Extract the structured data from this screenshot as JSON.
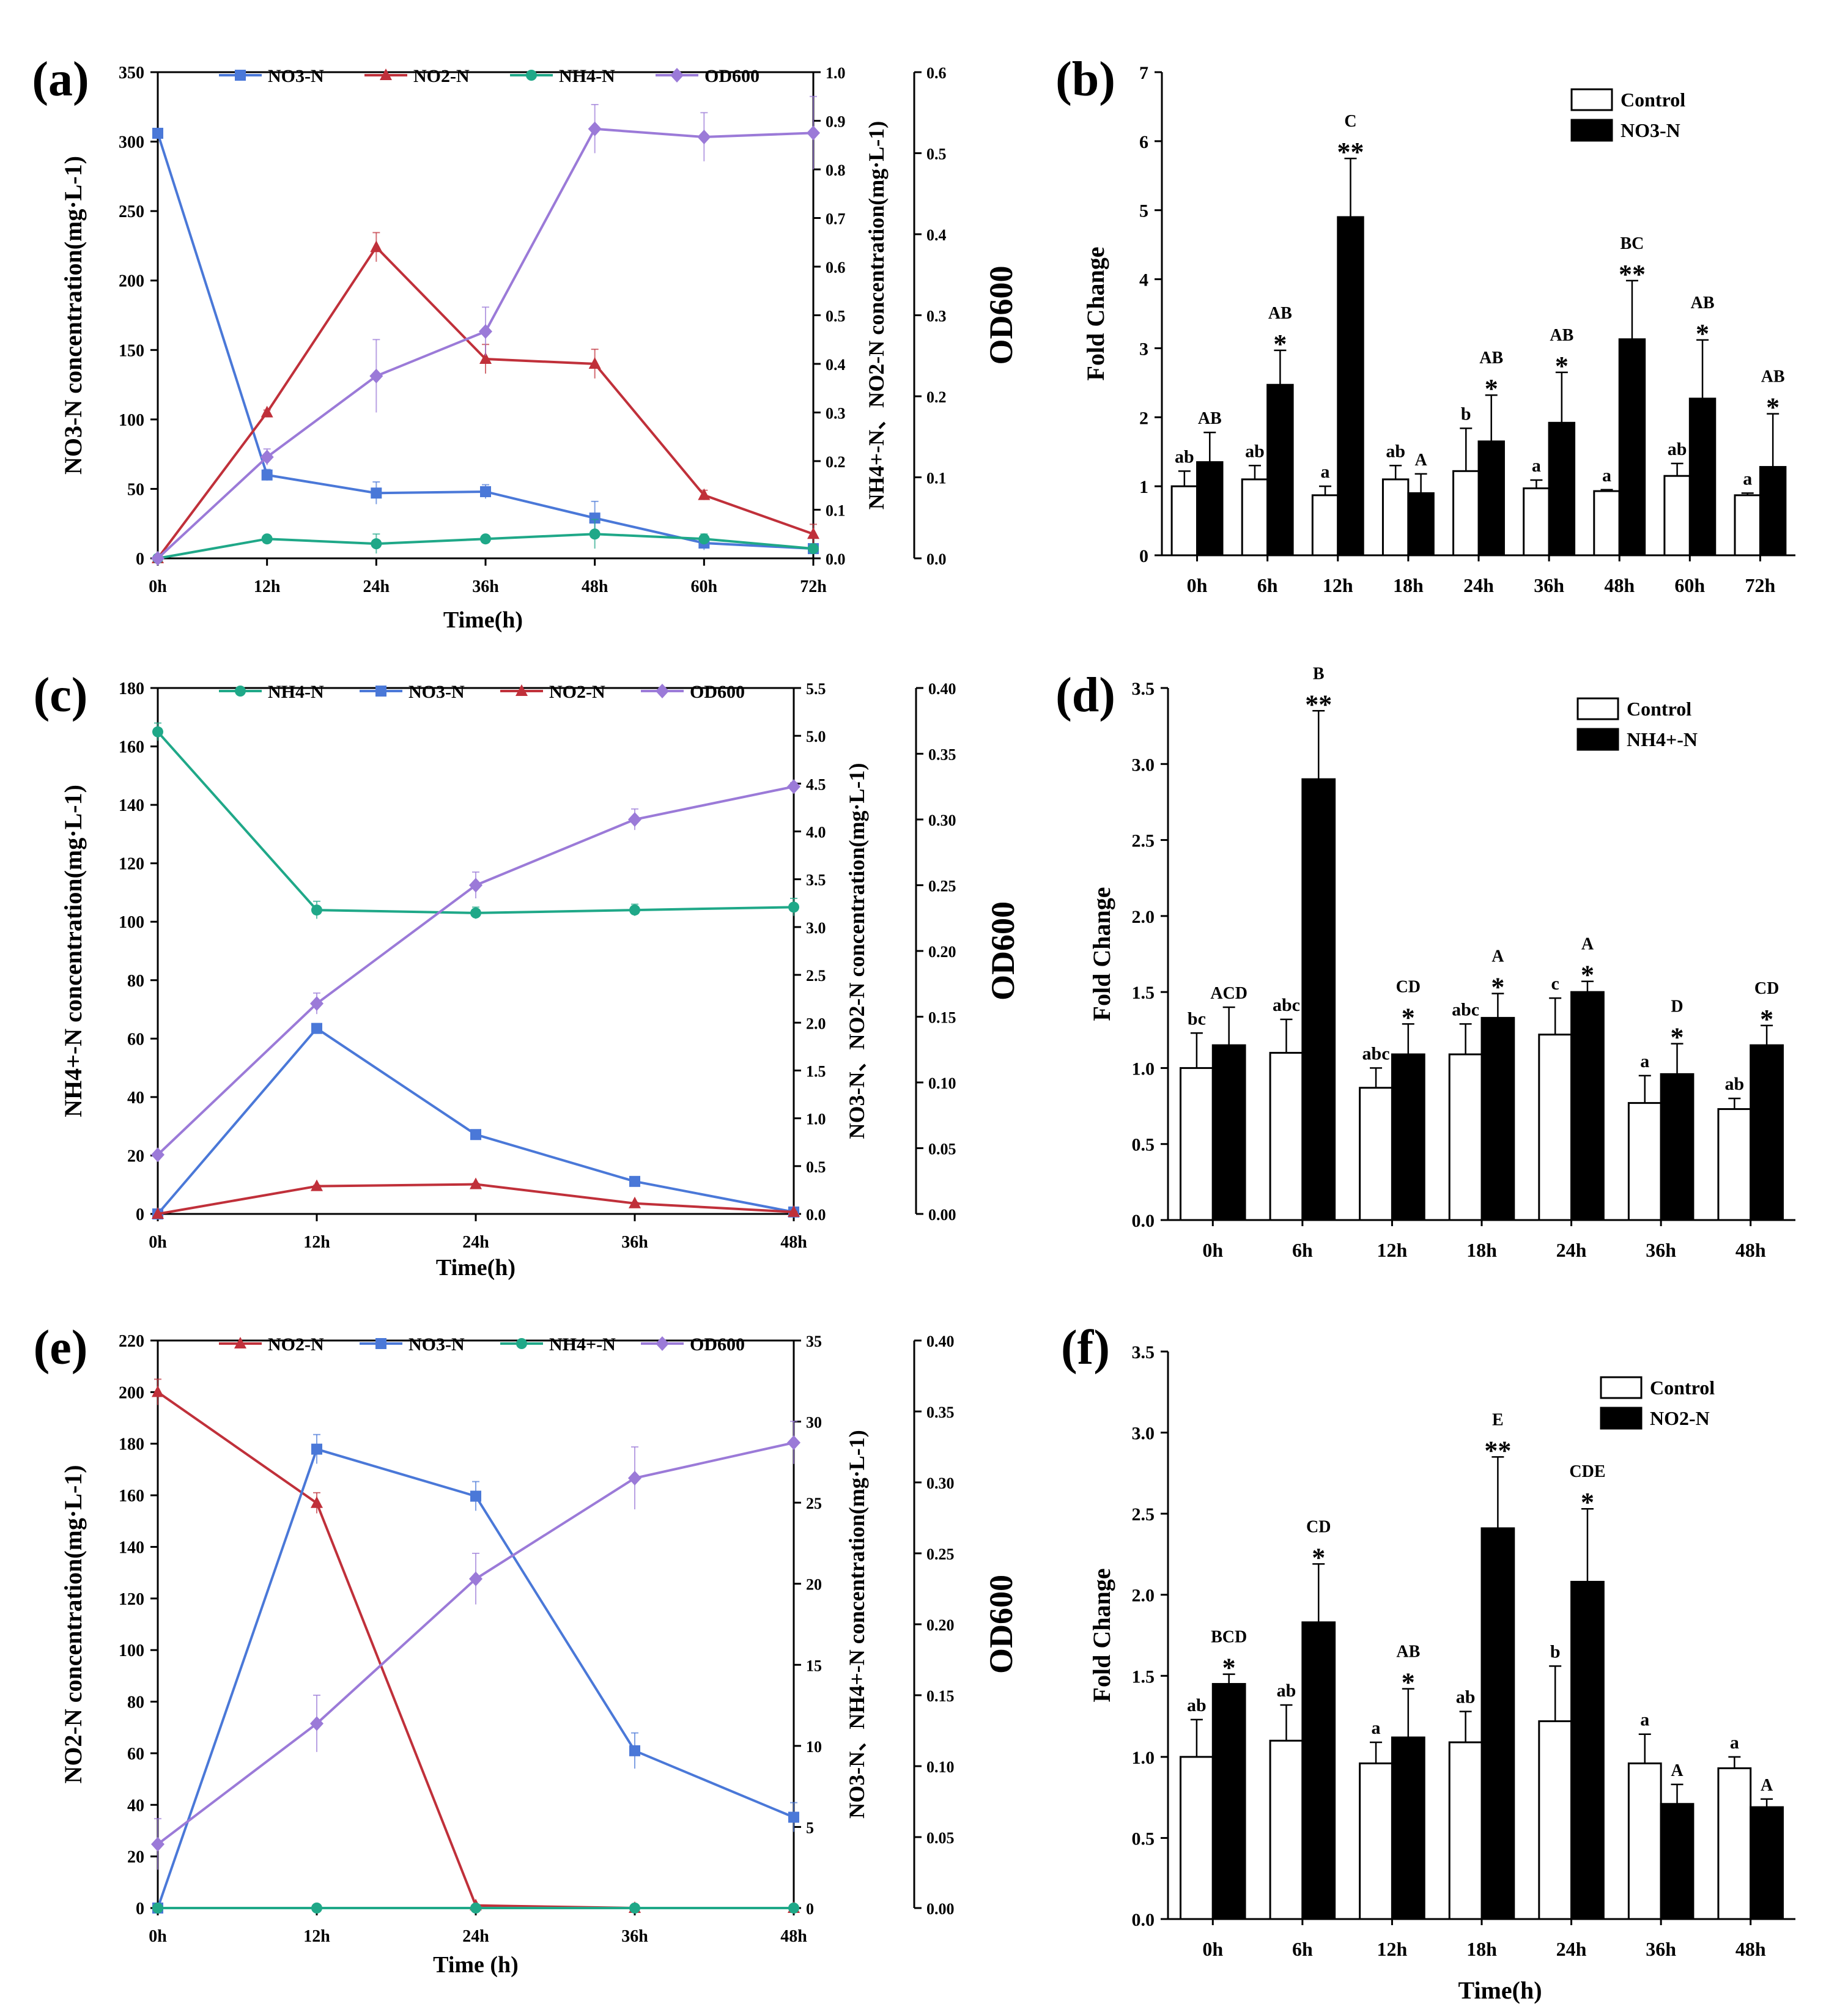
{
  "figure": {
    "panels": [
      "a",
      "b",
      "c",
      "d",
      "e",
      "f"
    ]
  },
  "colors": {
    "blue": "#4a78d8",
    "red": "#c0303a",
    "teal": "#1fa888",
    "purple": "#9b7ad8",
    "black": "#000000",
    "white": "#ffffff"
  },
  "chart_data": [
    {
      "panel": "(a)",
      "type": "line",
      "categories": [
        "0h",
        "12h",
        "24h",
        "36h",
        "48h",
        "60h",
        "72h"
      ],
      "xlabel": "Time(h)",
      "left_axis": {
        "label": "NO3-N concentration(mg·L-1)",
        "range": [
          0,
          350
        ],
        "ticks": [
          "0",
          "50",
          "100",
          "150",
          "200",
          "250",
          "300",
          "350"
        ]
      },
      "right_axis_1": {
        "label": "NH4+-N、NO2-N concentration(mg·L-1)",
        "range": [
          0,
          1.0
        ],
        "ticks": [
          "0.0",
          "0.1",
          "0.2",
          "0.3",
          "0.4",
          "0.5",
          "0.6",
          "0.7",
          "0.8",
          "0.9",
          "1.0"
        ]
      },
      "right_axis_2": {
        "label": "OD600",
        "range": [
          0,
          0.6
        ],
        "ticks": [
          "0.0",
          "0.1",
          "0.2",
          "0.3",
          "0.4",
          "0.5",
          "0.6"
        ]
      },
      "series": [
        {
          "name": "NO3-N",
          "label": "NO3-N",
          "axis": "left",
          "marker": "square",
          "color": "#4a78d8",
          "values": [
            306,
            60,
            47,
            48,
            29,
            11,
            7
          ],
          "errors": [
            0,
            4,
            8,
            5,
            12,
            5,
            1
          ]
        },
        {
          "name": "NO2-N",
          "label": "NO2-N",
          "axis": "right1",
          "marker": "triangle",
          "color": "#c0303a",
          "values": [
            0,
            0.3,
            0.64,
            0.41,
            0.4,
            0.13,
            0.05
          ],
          "errors": [
            0,
            0.005,
            0.03,
            0.03,
            0.03,
            0.01,
            0.02
          ]
        },
        {
          "name": "NH4-N",
          "label": "NH4-N",
          "axis": "right1",
          "marker": "circle",
          "color": "#1fa888",
          "values": [
            0,
            0.04,
            0.03,
            0.04,
            0.05,
            0.04,
            0.02
          ],
          "errors": [
            0,
            0.005,
            0.02,
            0.005,
            0.03,
            0.01,
            0.005
          ]
        },
        {
          "name": "OD600",
          "label": "OD600",
          "axis": "right2",
          "marker": "diamond",
          "color": "#9b7ad8",
          "values": [
            0,
            0.125,
            0.225,
            0.28,
            0.53,
            0.52,
            0.525
          ],
          "errors": [
            0,
            0.01,
            0.045,
            0.03,
            0.03,
            0.03,
            0.045
          ]
        }
      ]
    },
    {
      "panel": "(b)",
      "type": "bar",
      "categories": [
        "0h",
        "6h",
        "12h",
        "18h",
        "24h",
        "36h",
        "48h",
        "60h",
        "72h"
      ],
      "ylabel": "Fold Change",
      "ylim": [
        0,
        7
      ],
      "yticks": [
        "0",
        "1",
        "2",
        "3",
        "4",
        "5",
        "6",
        "7"
      ],
      "legend": [
        "Control",
        "NO3-N"
      ],
      "control": {
        "values": [
          1.0,
          1.1,
          0.87,
          1.1,
          1.22,
          0.97,
          0.93,
          1.15,
          0.87
        ],
        "errors": [
          0.22,
          0.2,
          0.13,
          0.2,
          0.62,
          0.12,
          0.02,
          0.18,
          0.03
        ],
        "letters": [
          "ab",
          "ab",
          "a",
          "ab",
          "b",
          "a",
          "a",
          "ab",
          "a"
        ]
      },
      "treatment": {
        "values": [
          1.35,
          2.47,
          4.9,
          0.9,
          1.65,
          1.92,
          3.13,
          2.27,
          1.28
        ],
        "errors": [
          0.43,
          0.5,
          0.85,
          0.28,
          0.67,
          0.73,
          0.85,
          0.85,
          0.77
        ],
        "letters": [
          "AB",
          "AB",
          "C",
          "A",
          "AB",
          "AB",
          "BC",
          "AB",
          "AB"
        ],
        "stars": [
          "",
          "*",
          "**",
          "",
          "*",
          "*",
          "**",
          "*",
          "*"
        ]
      }
    },
    {
      "panel": "(c)",
      "type": "line",
      "categories": [
        "0h",
        "12h",
        "24h",
        "36h",
        "48h"
      ],
      "xlabel": "Time(h)",
      "left_axis": {
        "label": "NH4+-N concentration(mg·L-1)",
        "range": [
          0,
          180
        ],
        "ticks": [
          "0",
          "20",
          "40",
          "60",
          "80",
          "100",
          "120",
          "140",
          "160",
          "180"
        ]
      },
      "right_axis_1": {
        "label": "NO3-N、NO2-N concentration(mg·L-1)",
        "range": [
          0,
          5.5
        ],
        "ticks": [
          "0.0",
          "0.5",
          "1.0",
          "1.5",
          "2.0",
          "2.5",
          "3.0",
          "3.5",
          "4.0",
          "4.5",
          "5.0",
          "5.5"
        ]
      },
      "right_axis_2": {
        "label": "OD600",
        "range": [
          0,
          0.4
        ],
        "ticks": [
          "0.00",
          "0.05",
          "0.10",
          "0.15",
          "0.20",
          "0.25",
          "0.30",
          "0.35",
          "0.40"
        ]
      },
      "series": [
        {
          "name": "NH4-N",
          "label": "NH4-N",
          "axis": "left",
          "marker": "circle",
          "color": "#1fa888",
          "values": [
            165,
            104,
            103,
            104,
            105
          ],
          "errors": [
            3,
            3,
            2,
            2,
            3
          ]
        },
        {
          "name": "NO3-N",
          "label": "NO3-N",
          "axis": "right1",
          "marker": "square",
          "color": "#4a78d8",
          "values": [
            0,
            1.94,
            0.83,
            0.34,
            0.02
          ],
          "errors": [
            0,
            0.05,
            0.03,
            0.02,
            0.005
          ]
        },
        {
          "name": "NO2-N",
          "label": "NO2-N",
          "axis": "right1",
          "marker": "triangle",
          "color": "#c0303a",
          "values": [
            0,
            0.29,
            0.31,
            0.11,
            0.02
          ],
          "errors": [
            0,
            0.01,
            0.01,
            0.01,
            0.005
          ]
        },
        {
          "name": "OD600",
          "label": "OD600",
          "axis": "right2",
          "marker": "diamond",
          "color": "#9b7ad8",
          "values": [
            0.045,
            0.16,
            0.25,
            0.3,
            0.325
          ],
          "errors": [
            0,
            0.008,
            0.01,
            0.008,
            0.003
          ]
        }
      ]
    },
    {
      "panel": "(d)",
      "type": "bar",
      "categories": [
        "0h",
        "6h",
        "12h",
        "18h",
        "24h",
        "36h",
        "48h"
      ],
      "ylabel": "Fold Change",
      "ylim": [
        0,
        3.5
      ],
      "yticks": [
        "0.0",
        "0.5",
        "1.0",
        "1.5",
        "2.0",
        "2.5",
        "3.0",
        "3.5"
      ],
      "legend": [
        "Control",
        "NH4+-N"
      ],
      "control": {
        "values": [
          1.0,
          1.1,
          0.87,
          1.09,
          1.22,
          0.77,
          0.73
        ],
        "errors": [
          0.23,
          0.22,
          0.13,
          0.2,
          0.24,
          0.18,
          0.07
        ],
        "letters": [
          "bc",
          "abc",
          "abc",
          "abc",
          "c",
          "a",
          "ab"
        ]
      },
      "treatment": {
        "values": [
          1.15,
          2.9,
          1.09,
          1.33,
          1.5,
          0.96,
          1.15
        ],
        "errors": [
          0.25,
          0.45,
          0.2,
          0.16,
          0.07,
          0.2,
          0.13
        ],
        "letters": [
          "ACD",
          "B",
          "CD",
          "A",
          "A",
          "D",
          "CD"
        ],
        "stars": [
          "",
          "**",
          "*",
          "*",
          "*",
          "*",
          "*"
        ]
      }
    },
    {
      "panel": "(e)",
      "type": "line",
      "categories": [
        "0h",
        "12h",
        "24h",
        "36h",
        "48h"
      ],
      "xlabel": "Time (h)",
      "left_axis": {
        "label": "NO2-N concentration(mg·L-1)",
        "range": [
          0,
          220
        ],
        "ticks": [
          "0",
          "20",
          "40",
          "60",
          "80",
          "100",
          "120",
          "140",
          "160",
          "180",
          "200",
          "220"
        ]
      },
      "right_axis_1": {
        "label": "NO3-N、NH4+-N concentration(mg·L-1)",
        "range": [
          0,
          35
        ],
        "ticks": [
          "0",
          "5",
          "10",
          "15",
          "20",
          "25",
          "30",
          "35"
        ]
      },
      "right_axis_2": {
        "label": "OD600",
        "range": [
          0,
          0.4
        ],
        "ticks": [
          "0.00",
          "0.05",
          "0.10",
          "0.15",
          "0.20",
          "0.25",
          "0.30",
          "0.35",
          "0.40"
        ]
      },
      "series": [
        {
          "name": "NO2-N",
          "label": "NO2-N",
          "axis": "left",
          "marker": "triangle",
          "color": "#c0303a",
          "values": [
            200,
            157,
            1,
            0,
            0
          ],
          "errors": [
            5,
            4,
            0,
            0,
            0
          ]
        },
        {
          "name": "NO3-N",
          "label": "NO3-N",
          "axis": "right1",
          "marker": "square",
          "color": "#4a78d8",
          "values": [
            0,
            28.3,
            25.4,
            9.7,
            5.6
          ],
          "errors": [
            0,
            0.9,
            0.9,
            1.1,
            0.9
          ]
        },
        {
          "name": "NH4-N",
          "label": "NH4+-N",
          "axis": "right1",
          "marker": "circle",
          "color": "#1fa888",
          "values": [
            0,
            0,
            0,
            0,
            0
          ],
          "errors": [
            0,
            0,
            0,
            0,
            0
          ]
        },
        {
          "name": "OD600",
          "label": "OD600",
          "axis": "right2",
          "marker": "diamond",
          "color": "#9b7ad8",
          "values": [
            0.045,
            0.13,
            0.232,
            0.303,
            0.328
          ],
          "errors": [
            0.018,
            0.02,
            0.018,
            0.022,
            0.015
          ]
        }
      ]
    },
    {
      "panel": "(f)",
      "type": "bar",
      "categories": [
        "0h",
        "6h",
        "12h",
        "18h",
        "24h",
        "36h",
        "48h"
      ],
      "xlabel": "Time(h)",
      "ylabel": "Fold Change",
      "ylim": [
        0,
        3.5
      ],
      "yticks": [
        "0.0",
        "0.5",
        "1.0",
        "1.5",
        "2.0",
        "2.5",
        "3.0",
        "3.5"
      ],
      "legend": [
        "Control",
        "NO2-N"
      ],
      "control": {
        "values": [
          1.0,
          1.1,
          0.96,
          1.09,
          1.22,
          0.96,
          0.93
        ],
        "errors": [
          0.23,
          0.22,
          0.13,
          0.19,
          0.34,
          0.18,
          0.07
        ],
        "letters": [
          "ab",
          "ab",
          "a",
          "ab",
          "b",
          "a",
          "a"
        ]
      },
      "treatment": {
        "values": [
          1.45,
          1.83,
          1.12,
          2.41,
          2.08,
          0.71,
          0.69
        ],
        "errors": [
          0.06,
          0.36,
          0.3,
          0.44,
          0.45,
          0.12,
          0.05
        ],
        "letters": [
          "BCD",
          "CD",
          "AB",
          "E",
          "CDE",
          "A",
          "A"
        ],
        "stars": [
          "*",
          "*",
          "*",
          "**",
          "*",
          "",
          ""
        ]
      }
    }
  ]
}
